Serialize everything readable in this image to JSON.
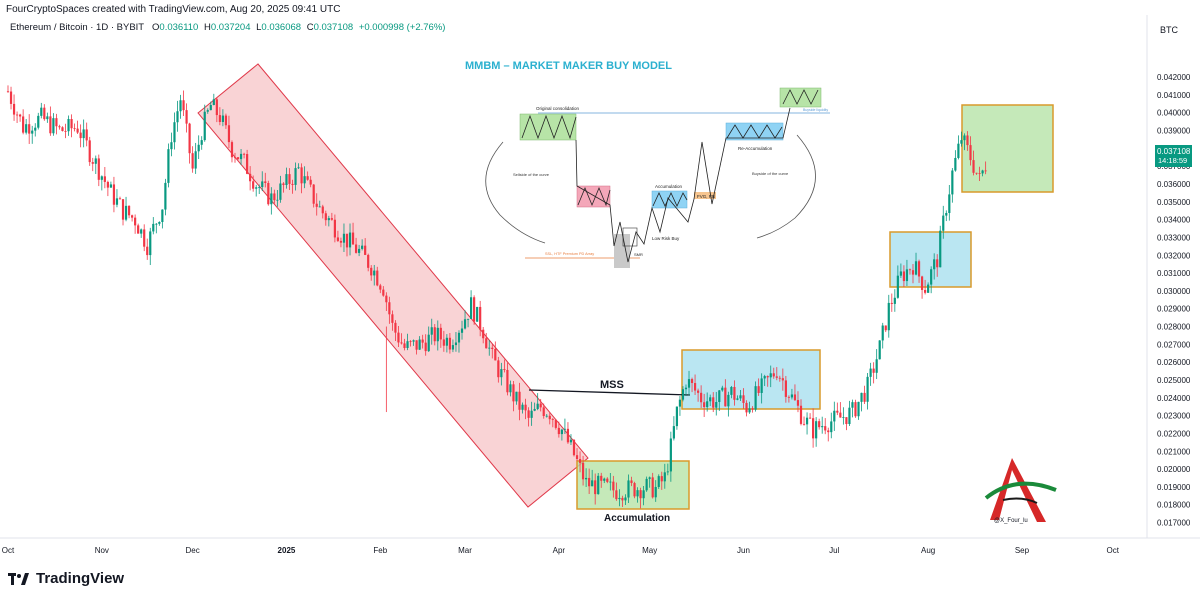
{
  "header": {
    "created_by": "FourCryptoSpaces created with TradingView.com, Aug 20, 2025 09:41 UTC",
    "symbol": "Ethereum / Bitcoin · 1D · BYBIT",
    "ohlc": {
      "o_label": "O",
      "o": "0.036110",
      "h_label": "H",
      "h": "0.037204",
      "l_label": "L",
      "l": "0.036068",
      "c_label": "C",
      "c": "0.037108",
      "change": "+0.000998 (+2.76%)"
    }
  },
  "currency": "BTC",
  "footer": {
    "brand": "TradingView"
  },
  "colors": {
    "up": "#089981",
    "down": "#f23645",
    "accent": "#26a69a",
    "title": "#2bb0cf"
  },
  "chart_data": {
    "type": "candlestick",
    "title": "MMBM – MARKET MAKER BUY MODEL",
    "y_ticks": [
      "0.017000",
      "0.018000",
      "0.019000",
      "0.020000",
      "0.021000",
      "0.022000",
      "0.023000",
      "0.024000",
      "0.025000",
      "0.026000",
      "0.027000",
      "0.028000",
      "0.029000",
      "0.030000",
      "0.031000",
      "0.032000",
      "0.033000",
      "0.034000",
      "0.035000",
      "0.036000",
      "0.037000",
      "0.038000",
      "0.039000",
      "0.040000",
      "0.041000",
      "0.042000"
    ],
    "y_range": [
      0.0163,
      0.0438
    ],
    "x_ticks": [
      "Oct",
      "Nov",
      "Dec",
      "2025",
      "Feb",
      "Mar",
      "Apr",
      "May",
      "Jun",
      "Jul",
      "Aug",
      "Sep",
      "Oct"
    ],
    "x_range": [
      "2024-10-01",
      "2025-10-10"
    ],
    "last_price": "0.037108",
    "countdown": "14:18:59",
    "close_path": [
      [
        "2024-10-01",
        0.0412
      ],
      [
        "2024-10-06",
        0.0392
      ],
      [
        "2024-10-12",
        0.0397
      ],
      [
        "2024-10-18",
        0.039
      ],
      [
        "2024-10-24",
        0.0392
      ],
      [
        "2024-10-28",
        0.0378
      ],
      [
        "2024-11-01",
        0.0365
      ],
      [
        "2024-11-04",
        0.0355
      ],
      [
        "2024-11-08",
        0.0345
      ],
      [
        "2024-11-12",
        0.034
      ],
      [
        "2024-11-16",
        0.0326
      ],
      [
        "2024-11-18",
        0.0335
      ],
      [
        "2024-11-21",
        0.0348
      ],
      [
        "2024-11-24",
        0.0388
      ],
      [
        "2024-11-27",
        0.0408
      ],
      [
        "2024-12-01",
        0.0368
      ],
      [
        "2024-12-04",
        0.039
      ],
      [
        "2024-12-07",
        0.0404
      ],
      [
        "2024-12-10",
        0.0398
      ],
      [
        "2024-12-14",
        0.038
      ],
      [
        "2024-12-18",
        0.0372
      ],
      [
        "2024-12-22",
        0.036
      ],
      [
        "2024-12-27",
        0.0352
      ],
      [
        "2025-01-01",
        0.036
      ],
      [
        "2025-01-05",
        0.0368
      ],
      [
        "2025-01-08",
        0.0358
      ],
      [
        "2025-01-12",
        0.0346
      ],
      [
        "2025-01-16",
        0.0338
      ],
      [
        "2025-01-20",
        0.033
      ],
      [
        "2025-01-25",
        0.0322
      ],
      [
        "2025-01-29",
        0.0314
      ],
      [
        "2025-02-02",
        0.0302
      ],
      [
        "2025-02-05",
        0.028
      ],
      [
        "2025-02-09",
        0.0268
      ],
      [
        "2025-02-14",
        0.027
      ],
      [
        "2025-02-19",
        0.0275
      ],
      [
        "2025-02-24",
        0.0272
      ],
      [
        "2025-02-28",
        0.0282
      ],
      [
        "2025-03-03",
        0.0292
      ],
      [
        "2025-03-07",
        0.0278
      ],
      [
        "2025-03-10",
        0.0262
      ],
      [
        "2025-03-14",
        0.025
      ],
      [
        "2025-03-18",
        0.0238
      ],
      [
        "2025-03-22",
        0.0228
      ],
      [
        "2025-03-26",
        0.0235
      ],
      [
        "2025-03-29",
        0.0232
      ],
      [
        "2025-04-02",
        0.0222
      ],
      [
        "2025-04-06",
        0.0208
      ],
      [
        "2025-04-10",
        0.0192
      ],
      [
        "2025-04-15",
        0.019
      ],
      [
        "2025-04-20",
        0.0188
      ],
      [
        "2025-04-25",
        0.0189
      ],
      [
        "2025-04-30",
        0.019
      ],
      [
        "2025-05-03",
        0.0189
      ],
      [
        "2025-05-06",
        0.0195
      ],
      [
        "2025-05-08",
        0.0212
      ],
      [
        "2025-05-10",
        0.0232
      ],
      [
        "2025-05-13",
        0.025
      ],
      [
        "2025-05-18",
        0.024
      ],
      [
        "2025-05-23",
        0.0238
      ],
      [
        "2025-05-28",
        0.0243
      ],
      [
        "2025-06-02",
        0.0235
      ],
      [
        "2025-06-07",
        0.0245
      ],
      [
        "2025-06-12",
        0.0256
      ],
      [
        "2025-06-17",
        0.024
      ],
      [
        "2025-06-21",
        0.0228
      ],
      [
        "2025-06-24",
        0.0222
      ],
      [
        "2025-06-28",
        0.0226
      ],
      [
        "2025-07-02",
        0.0228
      ],
      [
        "2025-07-07",
        0.0232
      ],
      [
        "2025-07-12",
        0.0246
      ],
      [
        "2025-07-16",
        0.0268
      ],
      [
        "2025-07-19",
        0.029
      ],
      [
        "2025-07-23",
        0.0308
      ],
      [
        "2025-07-27",
        0.0315
      ],
      [
        "2025-07-31",
        0.0302
      ],
      [
        "2025-08-04",
        0.0318
      ],
      [
        "2025-08-07",
        0.0348
      ],
      [
        "2025-08-09",
        0.0366
      ],
      [
        "2025-08-12",
        0.0386
      ],
      [
        "2025-08-15",
        0.0375
      ],
      [
        "2025-08-18",
        0.0362
      ],
      [
        "2025-08-20",
        0.0371
      ]
    ],
    "annotations": {
      "mss_label": "MSS",
      "accumulation_label": "Accumulation",
      "watermark_handle": "@X_Four_lu"
    },
    "inset_diagram": {
      "labels": {
        "original_consolidation": "Original consolidation",
        "sellside": "Sellside of the curve",
        "buyside": "Buyside of the curve",
        "accumulation": "Accumulation",
        "re_accumulation": "Re-Accumulation",
        "fvg_rb": "FVG, RB",
        "low_risk_buy": "Low Risk Buy",
        "smr": "SMR",
        "ssl": "SSL, HTF Premium PD Array",
        "bsl": "Buyside liquidity"
      }
    }
  }
}
